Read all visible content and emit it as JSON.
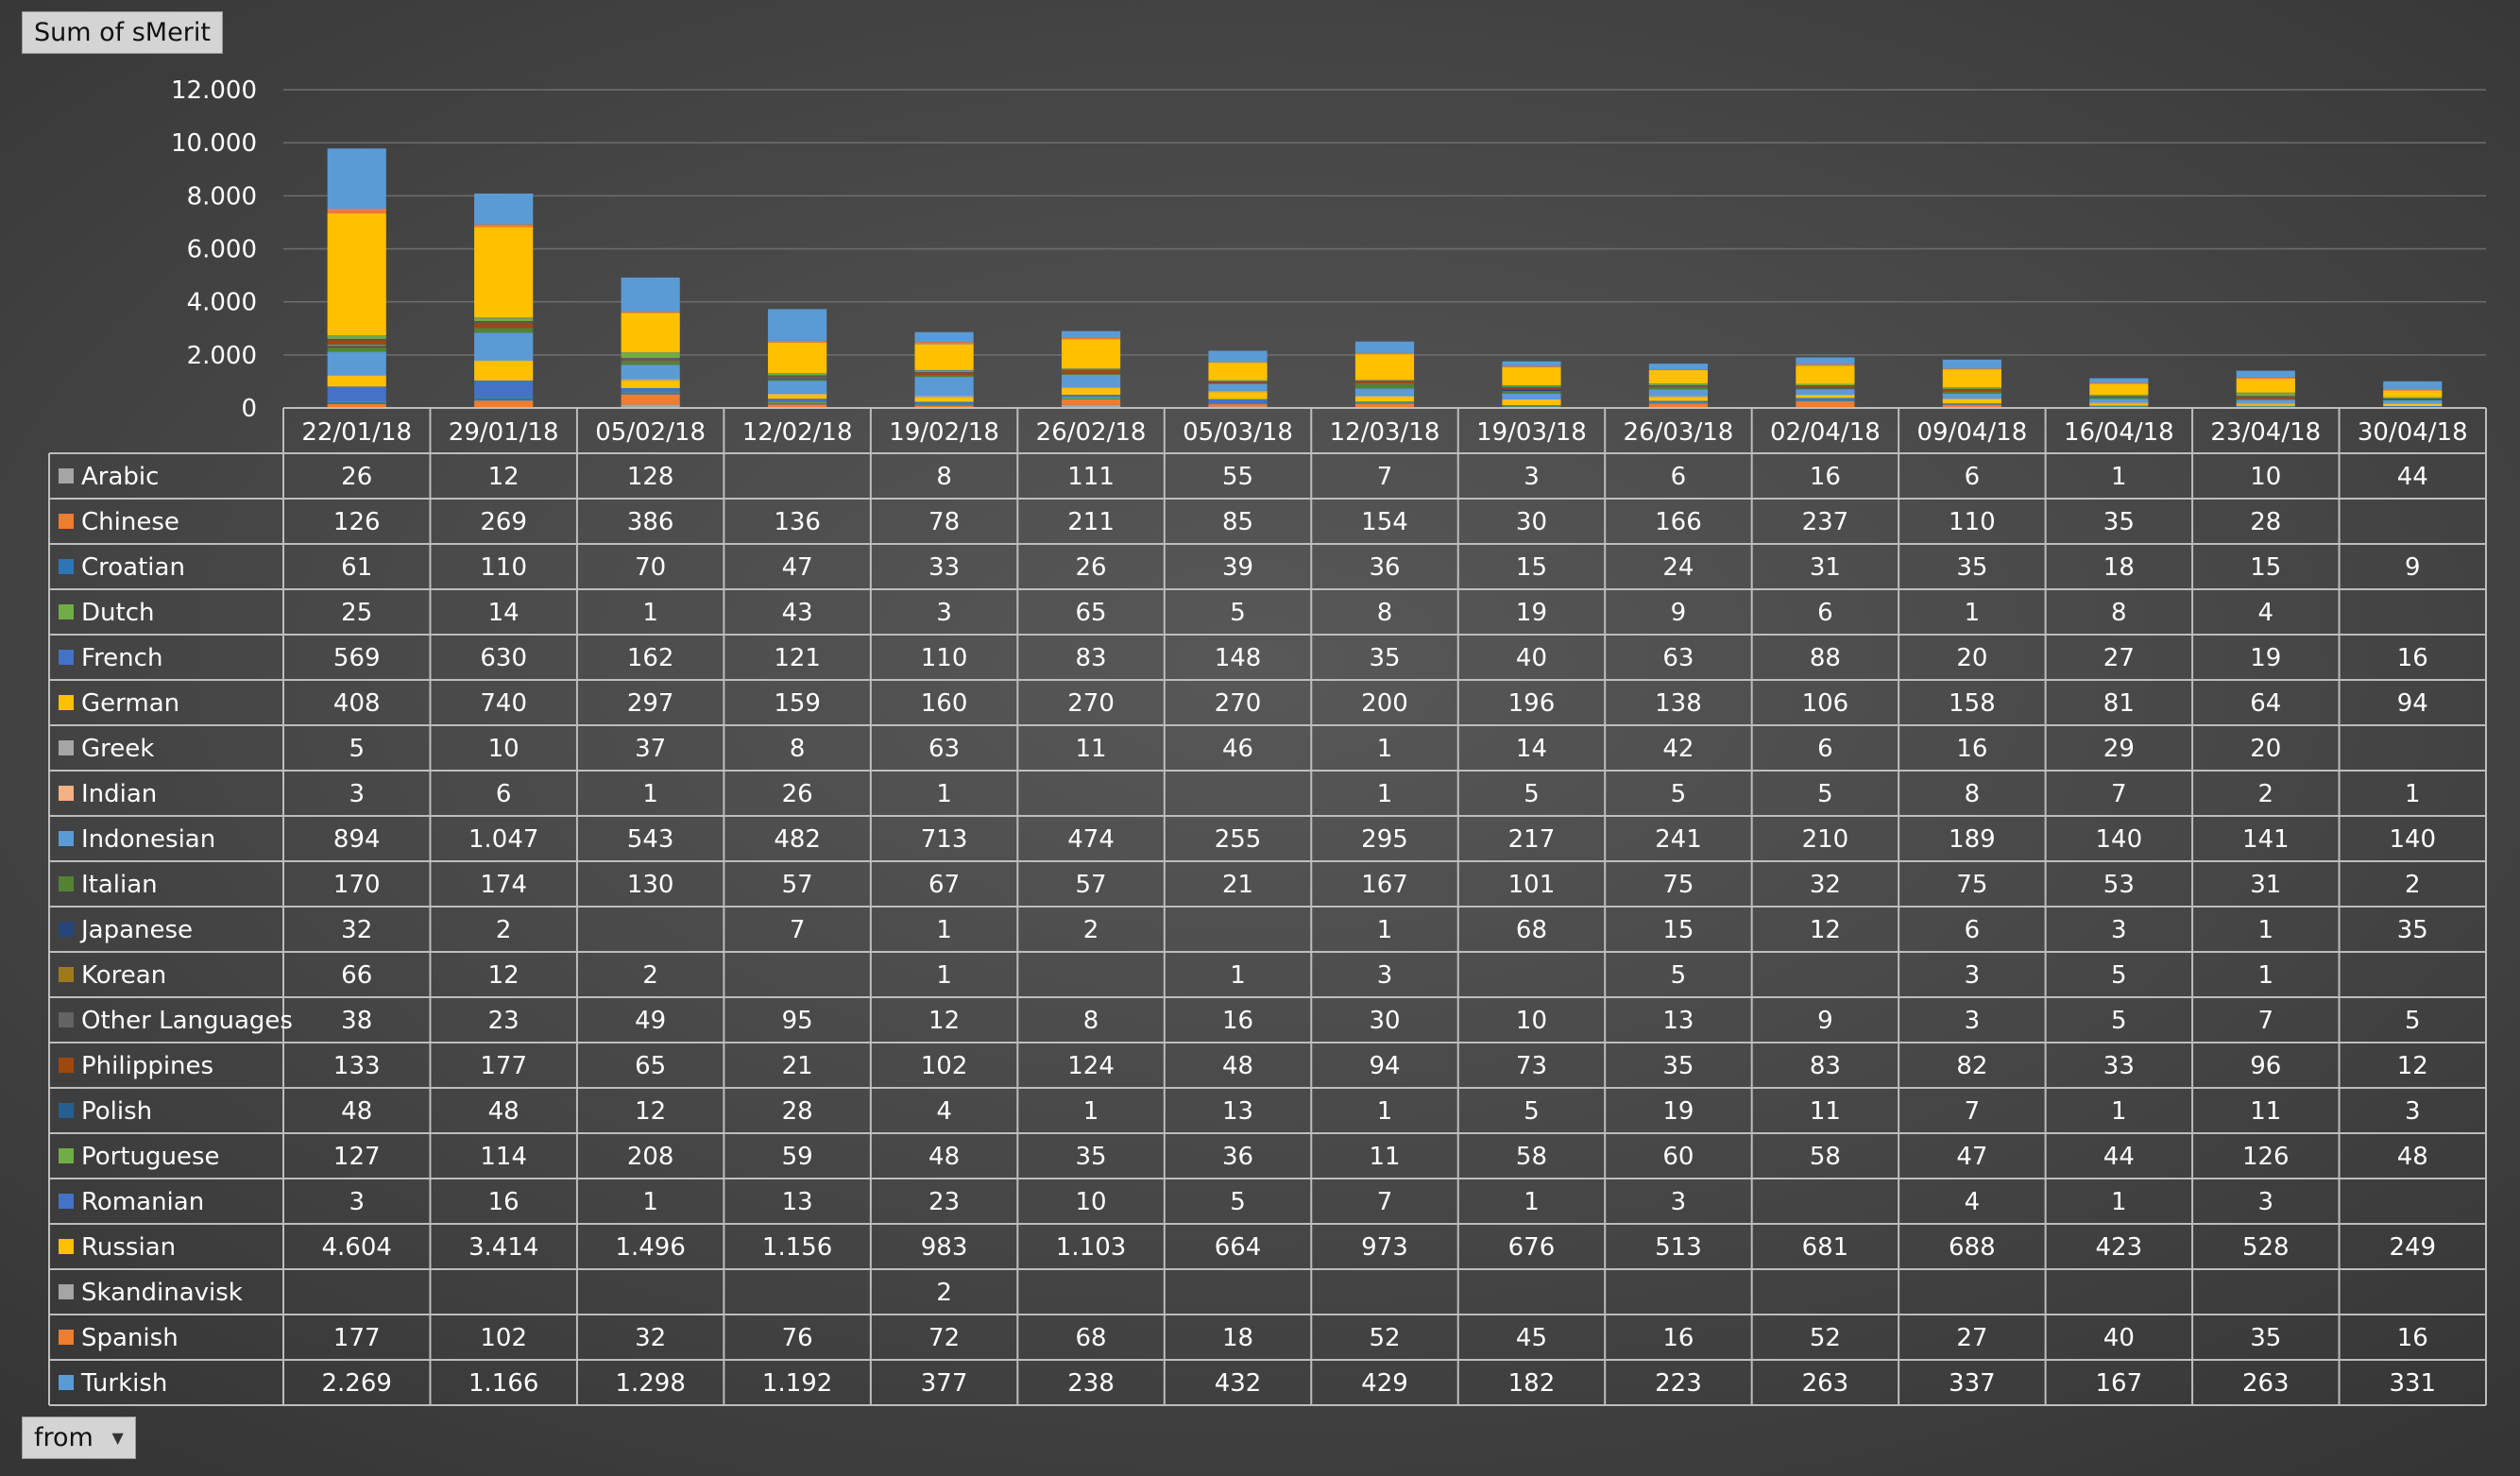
{
  "header": {
    "value_field_label": "Sum of sMerit"
  },
  "footer": {
    "filter_field_label": "from",
    "filter_dropdown_icon": "chevron-down-icon"
  },
  "chart_data": {
    "type": "bar",
    "stacked": true,
    "categories": [
      "22/01/18",
      "29/01/18",
      "05/02/18",
      "12/02/18",
      "19/02/18",
      "26/02/18",
      "05/03/18",
      "12/03/18",
      "19/03/18",
      "26/03/18",
      "02/04/18",
      "09/04/18",
      "16/04/18",
      "23/04/18",
      "30/04/18"
    ],
    "ylim": [
      0,
      12000
    ],
    "yticks": [
      0,
      2000,
      4000,
      6000,
      8000,
      10000,
      12000
    ],
    "ytick_labels": [
      "0",
      "2.000",
      "4.000",
      "6.000",
      "8.000",
      "10.000",
      "12.000"
    ],
    "grid": true,
    "legend": "data-table",
    "series": [
      {
        "name": "Arabic",
        "color": "#a5a5a5",
        "values": [
          26,
          12,
          128,
          null,
          8,
          111,
          55,
          7,
          3,
          6,
          16,
          6,
          1,
          10,
          44
        ]
      },
      {
        "name": "Chinese",
        "color": "#ed7d31",
        "values": [
          126,
          269,
          386,
          136,
          78,
          211,
          85,
          154,
          30,
          166,
          237,
          110,
          35,
          28,
          null
        ]
      },
      {
        "name": "Croatian",
        "color": "#2e75b6",
        "values": [
          61,
          110,
          70,
          47,
          33,
          26,
          39,
          36,
          15,
          24,
          31,
          35,
          18,
          15,
          9
        ]
      },
      {
        "name": "Dutch",
        "color": "#70ad47",
        "values": [
          25,
          14,
          1,
          43,
          3,
          65,
          5,
          8,
          19,
          9,
          6,
          1,
          8,
          4,
          null
        ]
      },
      {
        "name": "French",
        "color": "#4472c4",
        "values": [
          569,
          630,
          162,
          121,
          110,
          83,
          148,
          35,
          40,
          63,
          88,
          20,
          27,
          19,
          16
        ]
      },
      {
        "name": "German",
        "color": "#ffc000",
        "values": [
          408,
          740,
          297,
          159,
          160,
          270,
          270,
          200,
          196,
          138,
          106,
          158,
          81,
          64,
          94
        ]
      },
      {
        "name": "Greek",
        "color": "#a5a5a5",
        "values": [
          5,
          10,
          37,
          8,
          63,
          11,
          46,
          1,
          14,
          42,
          6,
          16,
          29,
          20,
          null
        ]
      },
      {
        "name": "Indian",
        "color": "#f4b183",
        "values": [
          3,
          6,
          1,
          26,
          1,
          null,
          null,
          1,
          5,
          5,
          5,
          8,
          7,
          2,
          1
        ]
      },
      {
        "name": "Indonesian",
        "color": "#5b9bd5",
        "values": [
          894,
          1047,
          543,
          482,
          713,
          474,
          255,
          295,
          217,
          241,
          210,
          189,
          140,
          141,
          140
        ]
      },
      {
        "name": "Italian",
        "color": "#548235",
        "values": [
          170,
          174,
          130,
          57,
          67,
          57,
          21,
          167,
          101,
          75,
          32,
          75,
          53,
          31,
          2
        ]
      },
      {
        "name": "Japanese",
        "color": "#264478",
        "values": [
          32,
          2,
          null,
          7,
          1,
          2,
          null,
          1,
          68,
          15,
          12,
          6,
          3,
          1,
          35
        ]
      },
      {
        "name": "Korean",
        "color": "#9e7a1e",
        "values": [
          66,
          12,
          2,
          null,
          1,
          null,
          1,
          3,
          null,
          5,
          null,
          3,
          5,
          1,
          null
        ]
      },
      {
        "name": "Other Languages",
        "color": "#636363",
        "values": [
          38,
          23,
          49,
          95,
          12,
          8,
          16,
          30,
          10,
          13,
          9,
          3,
          5,
          7,
          5
        ]
      },
      {
        "name": "Philippines",
        "color": "#9e480e",
        "values": [
          133,
          177,
          65,
          21,
          102,
          124,
          48,
          94,
          73,
          35,
          83,
          82,
          33,
          96,
          12
        ]
      },
      {
        "name": "Polish",
        "color": "#255e91",
        "values": [
          48,
          48,
          12,
          28,
          4,
          1,
          13,
          1,
          5,
          19,
          11,
          7,
          1,
          11,
          3
        ]
      },
      {
        "name": "Portuguese",
        "color": "#70ad47",
        "values": [
          127,
          114,
          208,
          59,
          48,
          35,
          36,
          11,
          58,
          60,
          58,
          47,
          44,
          126,
          48
        ]
      },
      {
        "name": "Romanian",
        "color": "#4472c4",
        "values": [
          3,
          16,
          1,
          13,
          23,
          10,
          5,
          7,
          1,
          3,
          null,
          4,
          1,
          3,
          null
        ]
      },
      {
        "name": "Russian",
        "color": "#ffc000",
        "values": [
          4604,
          3414,
          1496,
          1156,
          983,
          1103,
          664,
          973,
          676,
          513,
          681,
          688,
          423,
          528,
          249
        ]
      },
      {
        "name": "Skandinavisk",
        "color": "#a5a5a5",
        "values": [
          null,
          null,
          null,
          null,
          2,
          null,
          null,
          null,
          null,
          null,
          null,
          null,
          null,
          null,
          null
        ]
      },
      {
        "name": "Spanish",
        "color": "#ed7d31",
        "values": [
          177,
          102,
          32,
          76,
          72,
          68,
          18,
          52,
          45,
          16,
          52,
          27,
          40,
          35,
          16
        ]
      },
      {
        "name": "Turkish",
        "color": "#5b9bd5",
        "values": [
          2269,
          1166,
          1298,
          1192,
          377,
          238,
          432,
          429,
          182,
          223,
          263,
          337,
          167,
          263,
          331
        ]
      }
    ]
  }
}
